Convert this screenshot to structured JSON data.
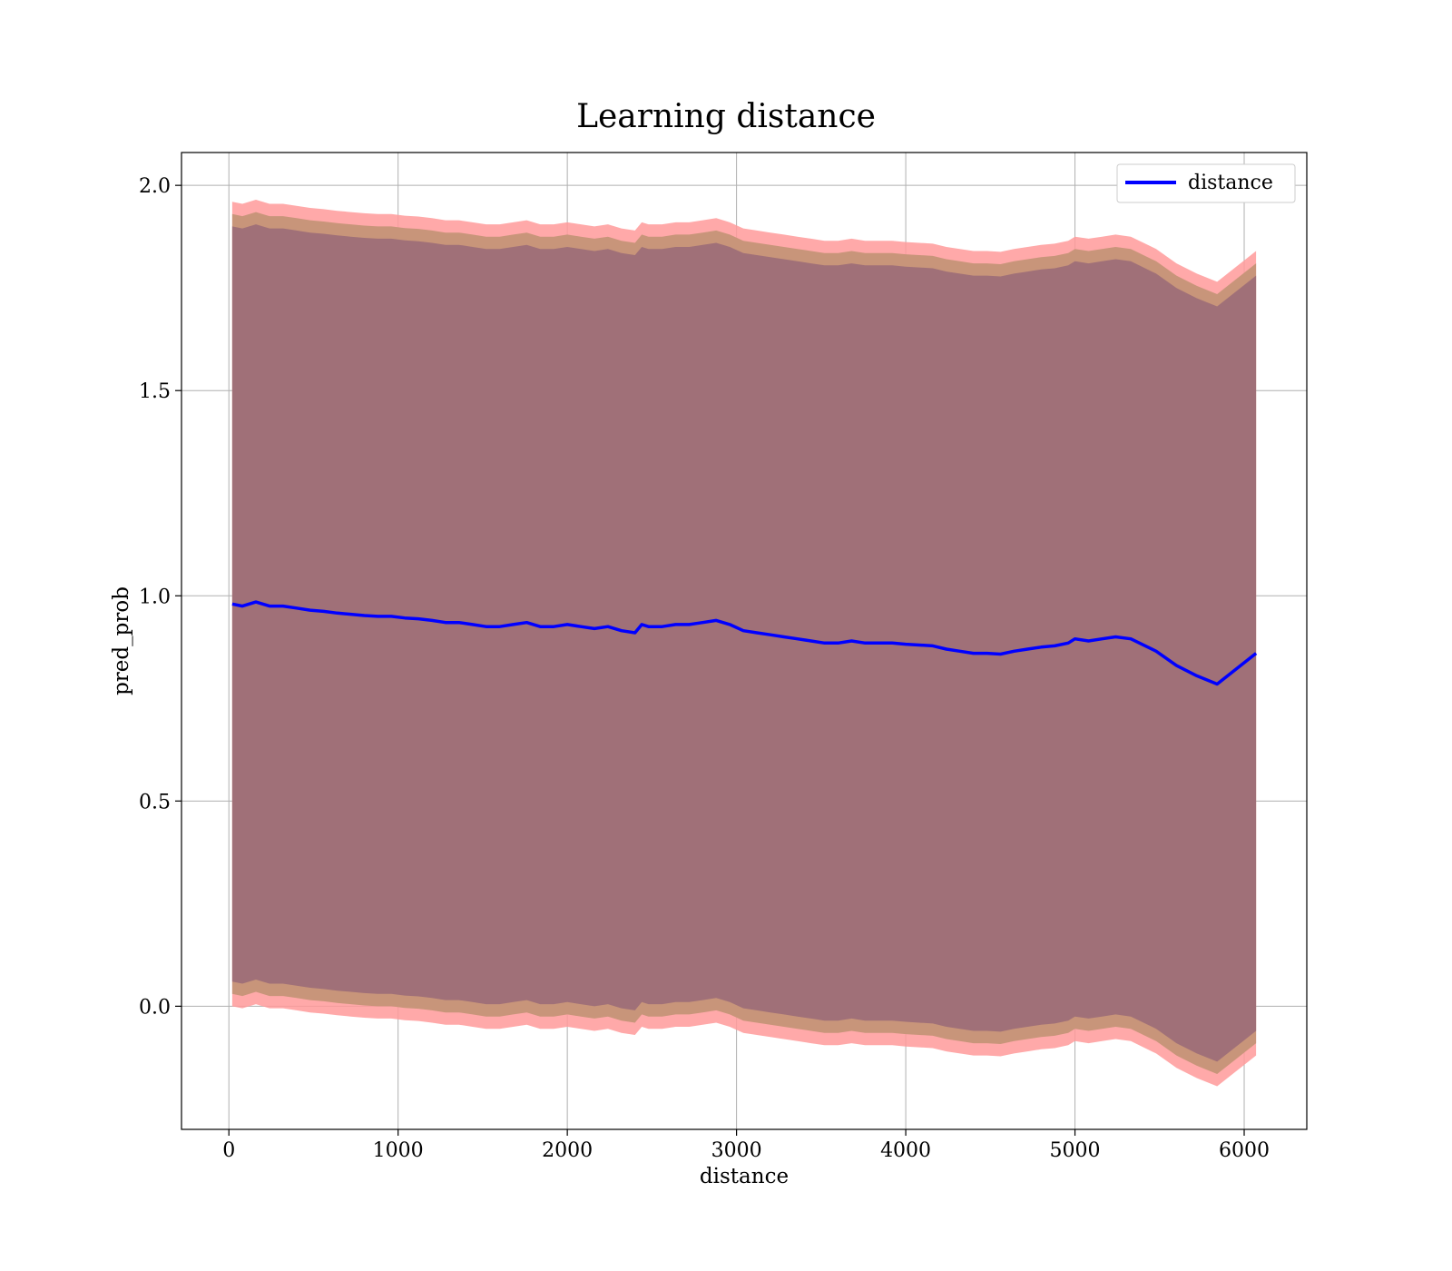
{
  "chart_data": {
    "type": "line",
    "title": "Learning distance",
    "xlabel": "distance",
    "ylabel": "pred_prob",
    "xlim": [
      -280,
      6370
    ],
    "ylim": [
      -0.3,
      2.08
    ],
    "x_ticks": [
      0,
      1000,
      2000,
      3000,
      4000,
      5000,
      6000
    ],
    "y_ticks": [
      0.0,
      0.5,
      1.0,
      1.5,
      2.0
    ],
    "x_tick_labels": [
      "0",
      "1000",
      "2000",
      "3000",
      "4000",
      "5000",
      "6000"
    ],
    "y_tick_labels": [
      "0.0",
      "0.5",
      "1.0",
      "1.5",
      "2.0"
    ],
    "grid": true,
    "legend": {
      "position": "top-right",
      "entries": [
        "distance"
      ]
    },
    "colors": {
      "line": "#0000ff",
      "band_outer": "#ff9a9a",
      "band_mid": "#c8957a",
      "band_inner": "#a07078"
    },
    "series": [
      {
        "name": "distance",
        "x": [
          20,
          80,
          160,
          240,
          320,
          400,
          480,
          560,
          640,
          720,
          800,
          880,
          960,
          1040,
          1120,
          1200,
          1280,
          1360,
          1440,
          1520,
          1600,
          1680,
          1760,
          1840,
          1920,
          2000,
          2080,
          2160,
          2240,
          2320,
          2400,
          2440,
          2480,
          2560,
          2640,
          2720,
          2800,
          2880,
          2960,
          3040,
          3120,
          3200,
          3280,
          3360,
          3440,
          3520,
          3600,
          3680,
          3760,
          3840,
          3920,
          4000,
          4080,
          4160,
          4240,
          4320,
          4400,
          4480,
          4560,
          4640,
          4720,
          4800,
          4880,
          4960,
          5000,
          5080,
          5160,
          5240,
          5330,
          5480,
          5600,
          5720,
          5840,
          6070
        ],
        "y": [
          0.98,
          0.975,
          0.985,
          0.975,
          0.975,
          0.97,
          0.965,
          0.962,
          0.958,
          0.955,
          0.952,
          0.95,
          0.95,
          0.946,
          0.944,
          0.94,
          0.935,
          0.935,
          0.93,
          0.925,
          0.925,
          0.93,
          0.935,
          0.925,
          0.925,
          0.93,
          0.925,
          0.92,
          0.925,
          0.915,
          0.91,
          0.93,
          0.925,
          0.925,
          0.93,
          0.93,
          0.935,
          0.94,
          0.93,
          0.915,
          0.91,
          0.905,
          0.9,
          0.895,
          0.89,
          0.885,
          0.885,
          0.89,
          0.885,
          0.885,
          0.885,
          0.882,
          0.88,
          0.878,
          0.87,
          0.865,
          0.86,
          0.86,
          0.858,
          0.865,
          0.87,
          0.875,
          0.878,
          0.885,
          0.895,
          0.89,
          0.895,
          0.9,
          0.895,
          0.865,
          0.83,
          0.805,
          0.785,
          0.86
        ],
        "band_inner_half_width": 0.92,
        "band_mid_half_width": 0.95,
        "band_outer_half_width": 0.98
      }
    ]
  }
}
